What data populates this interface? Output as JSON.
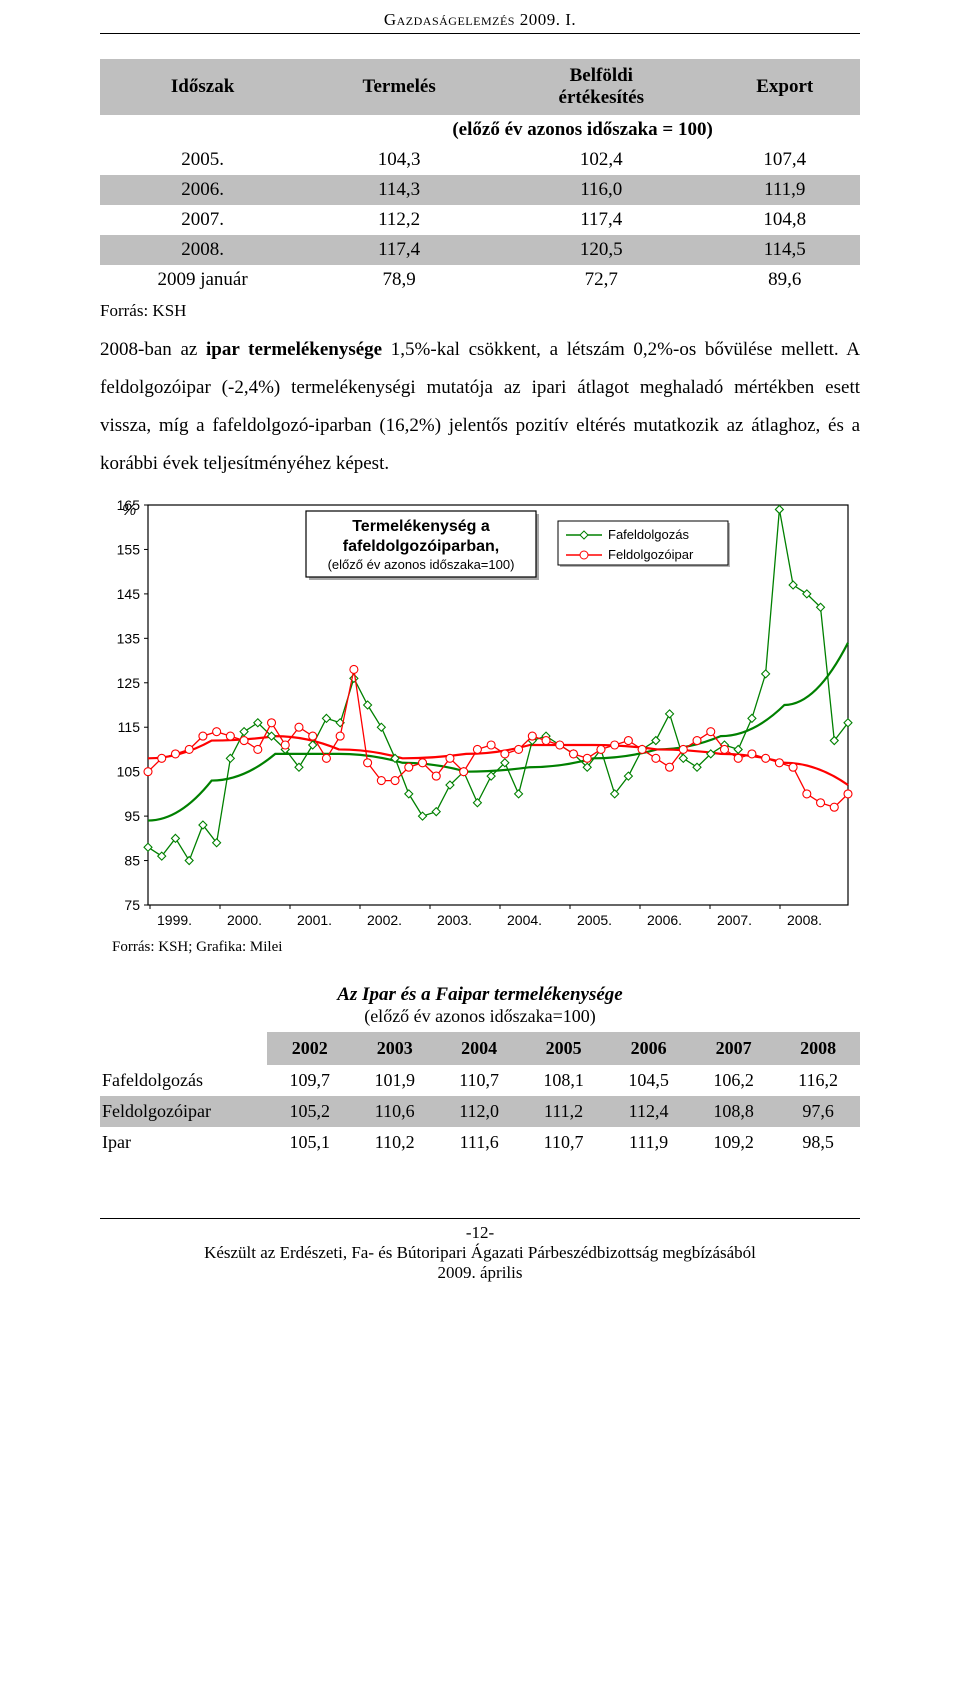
{
  "doc": {
    "header": "Gazdaságelemzés 2009. I.",
    "page_number": "-12-",
    "footer_line1": "Készült az Erdészeti, Fa- és Bútoripari Ágazati Párbeszédbizottság megbízásából",
    "footer_line2": "2009. április"
  },
  "table1": {
    "headers": [
      "Időszak",
      "Termelés",
      "Belföldi\nértékesítés",
      "Export"
    ],
    "subhead": "(előző év azonos időszaka = 100)",
    "rows": [
      {
        "bg": "white",
        "label": "2005.",
        "v": [
          "104,3",
          "102,4",
          "107,4"
        ]
      },
      {
        "bg": "grey",
        "label": "2006.",
        "v": [
          "114,3",
          "116,0",
          "111,9"
        ]
      },
      {
        "bg": "white",
        "label": "2007.",
        "v": [
          "112,2",
          "117,4",
          "104,8"
        ]
      },
      {
        "bg": "grey",
        "label": "2008.",
        "v": [
          "117,4",
          "120,5",
          "114,5"
        ]
      },
      {
        "bg": "white",
        "label": "2009 január",
        "v": [
          "78,9",
          "72,7",
          "89,6"
        ]
      }
    ],
    "source": "Forrás: KSH"
  },
  "paragraph": {
    "t1": "2008-ban az ",
    "b1": "ipar termelékenysége",
    "t2": " 1,5%-kal csökkent, a létszám 0,2%-os bővülése mellett. A feldolgozóipar (-2,4%) termelékenységi mutatója az ipari átlagot meghaladó mértékben esett vissza, míg a fafeldolgozó-iparban (16,2%) jelentős pozitív eltérés mutatkozik az átlaghoz, és a korábbi évek teljesítményéhez képest."
  },
  "chart": {
    "type": "line",
    "title_line1": "Termelékenység a",
    "title_line2": "fafeldolgozóiparban,",
    "title_sub": "(előző év azonos időszaka=100)",
    "yaxis_unit": "%",
    "legend": [
      {
        "label": "Fafeldolgozás",
        "color": "#008000",
        "marker": "diamond"
      },
      {
        "label": "Feldolgozóipar",
        "color": "#ff0000",
        "marker": "circle"
      }
    ],
    "ylim": [
      75,
      165
    ],
    "ytick_step": 10,
    "yticks": [
      75,
      85,
      95,
      105,
      115,
      125,
      135,
      145,
      155,
      165
    ],
    "xlabels": [
      "1999.",
      "2000.",
      "2001.",
      "2002.",
      "2003.",
      "2004.",
      "2005.",
      "2006.",
      "2007.",
      "2008."
    ],
    "background_color": "#ffffff",
    "border_color": "#000000",
    "grid": false,
    "marker_size": 4,
    "line_width": 1.3,
    "trend_line_width": 2.2,
    "series": {
      "fafeldolgozas": {
        "color": "#008000",
        "values": [
          88,
          86,
          90,
          85,
          93,
          89,
          108,
          114,
          116,
          113,
          110,
          106,
          111,
          117,
          116,
          126,
          120,
          115,
          108,
          100,
          95,
          96,
          102,
          105,
          98,
          104,
          107,
          100,
          112,
          113,
          111,
          109,
          106,
          110,
          100,
          104,
          110,
          112,
          118,
          108,
          106,
          109,
          111,
          110,
          117,
          127,
          164,
          147,
          145,
          142,
          112,
          116
        ]
      },
      "feldolgozoipar": {
        "color": "#ff0000",
        "values": [
          105,
          108,
          109,
          110,
          113,
          114,
          113,
          112,
          110,
          116,
          111,
          115,
          113,
          108,
          113,
          128,
          107,
          103,
          103,
          106,
          107,
          104,
          108,
          105,
          110,
          111,
          109,
          110,
          113,
          112,
          111,
          109,
          108,
          110,
          111,
          112,
          110,
          108,
          106,
          110,
          112,
          114,
          110,
          108,
          109,
          108,
          107,
          106,
          100,
          98,
          97,
          100
        ]
      },
      "trend_green": {
        "color": "#008000",
        "values": [
          94,
          103,
          109,
          109,
          107,
          105,
          106,
          108,
          110,
          113,
          120,
          134
        ]
      },
      "trend_red": {
        "color": "#ff0000",
        "values": [
          108,
          112,
          113,
          110,
          108,
          109,
          111,
          111,
          110,
          109,
          107,
          102
        ]
      }
    },
    "caption": "Forrás: KSH; Grafika: Milei"
  },
  "subtitle": {
    "main": "Az Ipar és a Faipar termelékenysége",
    "sub": "(előző év azonos időszaka=100)"
  },
  "table2": {
    "headers": [
      "",
      "2002",
      "2003",
      "2004",
      "2005",
      "2006",
      "2007",
      "2008"
    ],
    "rows": [
      {
        "bg": "white",
        "label": "Fafeldolgozás",
        "v": [
          "109,7",
          "101,9",
          "110,7",
          "108,1",
          "104,5",
          "106,2",
          "116,2"
        ]
      },
      {
        "bg": "grey",
        "label": "Feldolgozóipar",
        "v": [
          "105,2",
          "110,6",
          "112,0",
          "111,2",
          "112,4",
          "108,8",
          "97,6"
        ]
      },
      {
        "bg": "white",
        "label": "Ipar",
        "v": [
          "105,1",
          "110,2",
          "111,6",
          "110,7",
          "111,9",
          "109,2",
          "98,5"
        ]
      }
    ]
  }
}
